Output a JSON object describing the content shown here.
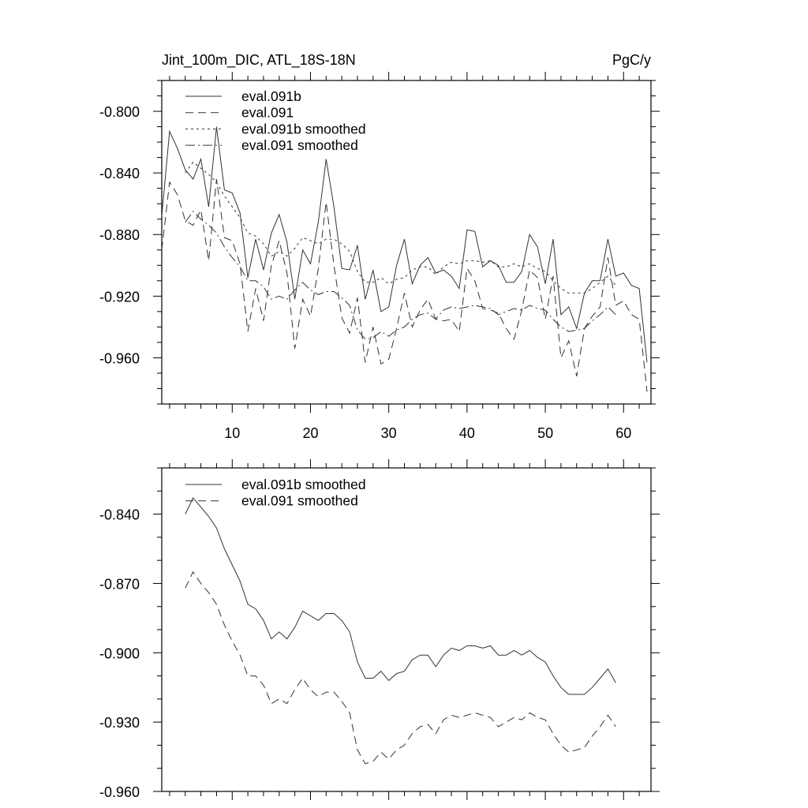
{
  "chart_data": [
    {
      "type": "line",
      "title": "Jint_100m_DIC, ATL_18S-18N",
      "units_label": "PgC/y",
      "xlabel": "",
      "ylabel": "",
      "xlim": [
        1,
        63.5
      ],
      "ylim": [
        -0.99,
        -0.78
      ],
      "x_major_ticks": [
        10,
        20,
        30,
        40,
        50,
        60
      ],
      "x_tick_labels": [
        "10",
        "20",
        "30",
        "40",
        "50",
        "60"
      ],
      "x_minor_step": 2,
      "y_major_ticks": [
        -0.8,
        -0.84,
        -0.88,
        -0.92,
        -0.96
      ],
      "y_tick_labels": [
        "-0.800",
        "-0.840",
        "-0.880",
        "-0.920",
        "-0.960"
      ],
      "y_minor_step": 0.01,
      "grid": false,
      "legend_position": "top-left",
      "series": [
        {
          "name": "eval.091b",
          "style": "solid",
          "x_start": 1,
          "values": [
            -0.868,
            -0.813,
            -0.824,
            -0.838,
            -0.844,
            -0.831,
            -0.862,
            -0.81,
            -0.851,
            -0.853,
            -0.866,
            -0.908,
            -0.883,
            -0.903,
            -0.879,
            -0.867,
            -0.885,
            -0.922,
            -0.89,
            -0.899,
            -0.872,
            -0.831,
            -0.862,
            -0.902,
            -0.903,
            -0.887,
            -0.922,
            -0.903,
            -0.93,
            -0.927,
            -0.9,
            -0.883,
            -0.912,
            -0.9,
            -0.895,
            -0.905,
            -0.903,
            -0.907,
            -0.915,
            -0.877,
            -0.878,
            -0.901,
            -0.897,
            -0.9,
            -0.911,
            -0.911,
            -0.904,
            -0.88,
            -0.888,
            -0.912,
            -0.883,
            -0.932,
            -0.927,
            -0.941,
            -0.918,
            -0.91,
            -0.91,
            -0.883,
            -0.907,
            -0.905,
            -0.913,
            -0.915,
            -0.963
          ]
        },
        {
          "name": "eval.091",
          "style": "dashed",
          "x_start": 1,
          "values": [
            -0.89,
            -0.846,
            -0.854,
            -0.871,
            -0.874,
            -0.864,
            -0.897,
            -0.844,
            -0.882,
            -0.884,
            -0.899,
            -0.943,
            -0.915,
            -0.936,
            -0.9,
            -0.884,
            -0.905,
            -0.954,
            -0.922,
            -0.933,
            -0.902,
            -0.859,
            -0.9,
            -0.934,
            -0.944,
            -0.921,
            -0.963,
            -0.94,
            -0.964,
            -0.961,
            -0.941,
            -0.918,
            -0.94,
            -0.929,
            -0.922,
            -0.935,
            -0.936,
            -0.935,
            -0.943,
            -0.902,
            -0.91,
            -0.928,
            -0.929,
            -0.931,
            -0.941,
            -0.948,
            -0.929,
            -0.903,
            -0.908,
            -0.935,
            -0.907,
            -0.96,
            -0.949,
            -0.972,
            -0.941,
            -0.933,
            -0.927,
            -0.895,
            -0.926,
            -0.923,
            -0.932,
            -0.935,
            -0.982
          ]
        },
        {
          "name": "eval.091b smoothed",
          "style": "dotted",
          "x_start": 4,
          "values": [
            -0.84,
            -0.833,
            -0.837,
            -0.841,
            -0.846,
            -0.855,
            -0.862,
            -0.869,
            -0.879,
            -0.881,
            -0.886,
            -0.894,
            -0.891,
            -0.894,
            -0.889,
            -0.882,
            -0.884,
            -0.886,
            -0.883,
            -0.883,
            -0.886,
            -0.891,
            -0.904,
            -0.911,
            -0.911,
            -0.908,
            -0.912,
            -0.909,
            -0.908,
            -0.903,
            -0.901,
            -0.901,
            -0.906,
            -0.901,
            -0.898,
            -0.899,
            -0.897,
            -0.897,
            -0.898,
            -0.897,
            -0.901,
            -0.901,
            -0.899,
            -0.901,
            -0.899,
            -0.902,
            -0.904,
            -0.91,
            -0.915,
            -0.918,
            -0.918,
            -0.918,
            -0.915,
            -0.911,
            -0.907,
            -0.913
          ]
        },
        {
          "name": "eval.091 smoothed",
          "style": "dashdot",
          "x_start": 4,
          "values": [
            -0.872,
            -0.865,
            -0.87,
            -0.874,
            -0.879,
            -0.888,
            -0.895,
            -0.901,
            -0.91,
            -0.91,
            -0.914,
            -0.922,
            -0.92,
            -0.922,
            -0.916,
            -0.911,
            -0.916,
            -0.919,
            -0.917,
            -0.917,
            -0.921,
            -0.926,
            -0.942,
            -0.948,
            -0.947,
            -0.943,
            -0.946,
            -0.942,
            -0.94,
            -0.935,
            -0.932,
            -0.931,
            -0.935,
            -0.929,
            -0.927,
            -0.928,
            -0.927,
            -0.926,
            -0.927,
            -0.928,
            -0.932,
            -0.93,
            -0.928,
            -0.929,
            -0.926,
            -0.928,
            -0.929,
            -0.935,
            -0.94,
            -0.943,
            -0.942,
            -0.941,
            -0.936,
            -0.932,
            -0.927,
            -0.932
          ]
        }
      ]
    },
    {
      "type": "line",
      "title": "",
      "xlabel": "",
      "ylabel": "",
      "xlim": [
        1,
        63.5
      ],
      "ylim": [
        -0.96,
        -0.82
      ],
      "x_major_ticks": [
        10,
        20,
        30,
        40,
        50,
        60
      ],
      "x_tick_labels": [],
      "x_minor_step": 2,
      "y_major_ticks": [
        -0.84,
        -0.87,
        -0.9,
        -0.93,
        -0.96
      ],
      "y_tick_labels": [
        "-0.840",
        "-0.870",
        "-0.900",
        "-0.930",
        "-0.960"
      ],
      "y_minor_step": 0.01,
      "grid": false,
      "legend_position": "top-left",
      "series": [
        {
          "name": "eval.091b smoothed",
          "style": "solid",
          "x_start": 4,
          "values": [
            -0.84,
            -0.833,
            -0.837,
            -0.841,
            -0.846,
            -0.855,
            -0.862,
            -0.869,
            -0.879,
            -0.881,
            -0.886,
            -0.894,
            -0.891,
            -0.894,
            -0.889,
            -0.882,
            -0.884,
            -0.886,
            -0.883,
            -0.883,
            -0.886,
            -0.891,
            -0.904,
            -0.911,
            -0.911,
            -0.908,
            -0.912,
            -0.909,
            -0.908,
            -0.903,
            -0.901,
            -0.901,
            -0.906,
            -0.901,
            -0.898,
            -0.899,
            -0.897,
            -0.897,
            -0.898,
            -0.897,
            -0.901,
            -0.901,
            -0.899,
            -0.901,
            -0.899,
            -0.902,
            -0.904,
            -0.91,
            -0.915,
            -0.918,
            -0.918,
            -0.918,
            -0.915,
            -0.911,
            -0.907,
            -0.913
          ]
        },
        {
          "name": "eval.091 smoothed",
          "style": "dashed",
          "x_start": 4,
          "values": [
            -0.872,
            -0.865,
            -0.87,
            -0.874,
            -0.879,
            -0.888,
            -0.895,
            -0.901,
            -0.91,
            -0.91,
            -0.914,
            -0.922,
            -0.92,
            -0.922,
            -0.916,
            -0.911,
            -0.916,
            -0.919,
            -0.917,
            -0.917,
            -0.921,
            -0.926,
            -0.942,
            -0.948,
            -0.947,
            -0.943,
            -0.946,
            -0.942,
            -0.94,
            -0.935,
            -0.932,
            -0.931,
            -0.935,
            -0.929,
            -0.927,
            -0.928,
            -0.927,
            -0.926,
            -0.927,
            -0.928,
            -0.932,
            -0.93,
            -0.928,
            -0.929,
            -0.926,
            -0.928,
            -0.929,
            -0.935,
            -0.94,
            -0.943,
            -0.942,
            -0.941,
            -0.936,
            -0.932,
            -0.927,
            -0.932
          ]
        }
      ]
    }
  ]
}
